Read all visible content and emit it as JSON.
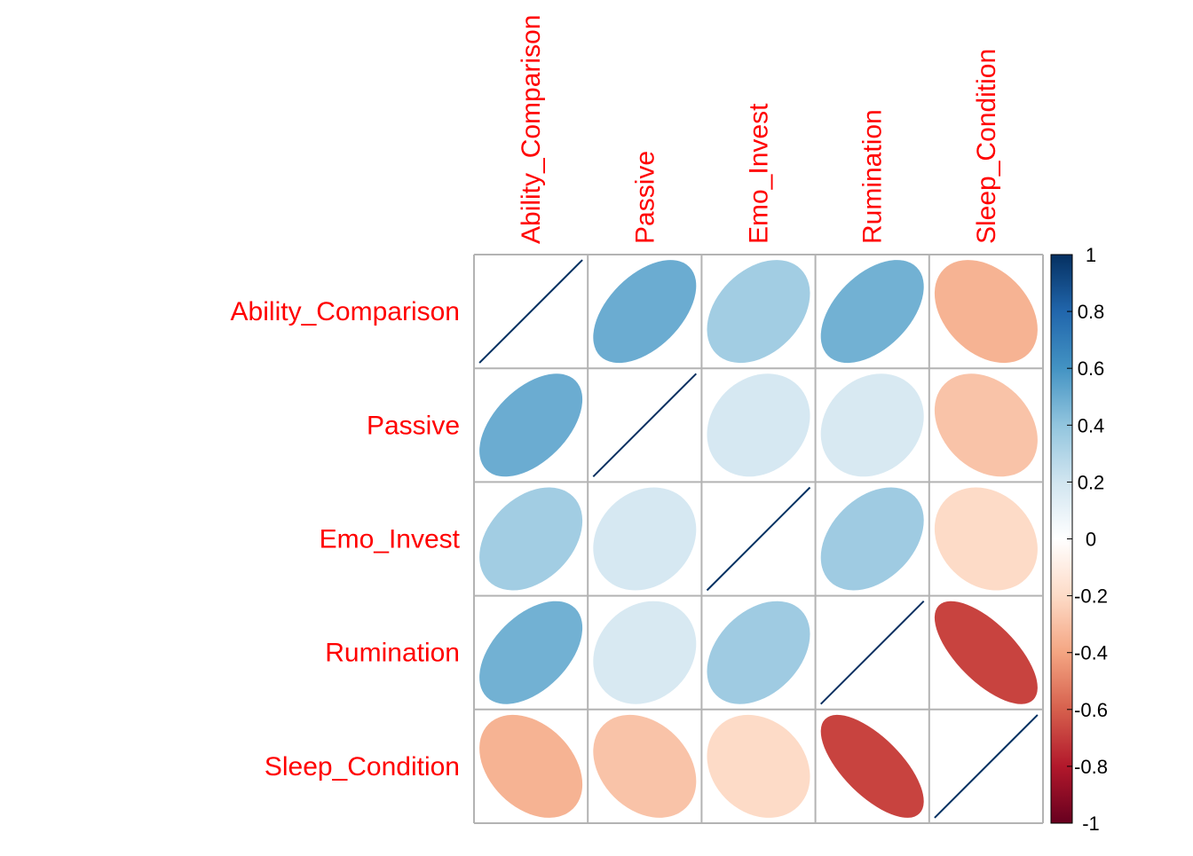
{
  "chart_data": {
    "type": "heatmap",
    "method": "ellipse",
    "variables": [
      "Ability_Comparison",
      "Passive",
      "Emo_Invest",
      "Rumination",
      "Sleep_Condition"
    ],
    "matrix": [
      [
        1.0,
        0.5,
        0.35,
        0.48,
        -0.35
      ],
      [
        0.5,
        1.0,
        0.18,
        0.17,
        -0.29
      ],
      [
        0.35,
        0.18,
        1.0,
        0.36,
        -0.2
      ],
      [
        0.48,
        0.17,
        0.36,
        1.0,
        -0.68
      ],
      [
        -0.35,
        -0.29,
        -0.2,
        -0.68,
        1.0
      ]
    ],
    "colorbar": {
      "ticks": [
        1,
        0.8,
        0.6,
        0.4,
        0.2,
        0,
        -0.2,
        -0.4,
        -0.6,
        -0.8,
        -1
      ],
      "tick_labels": [
        "1",
        "0.8",
        "0.6",
        "0.4",
        "0.2",
        "0",
        "-0.2",
        "-0.4",
        "-0.6",
        "-0.8",
        "-1"
      ],
      "range": [
        -1,
        1
      ]
    },
    "label_color": "#ff0000",
    "grid_color": "#b3b3b3",
    "palette": [
      "#67001f",
      "#b2182b",
      "#d6604d",
      "#f4a582",
      "#fddbc7",
      "#ffffff",
      "#d1e5f0",
      "#92c5de",
      "#4393c3",
      "#2166ac",
      "#053061"
    ]
  }
}
